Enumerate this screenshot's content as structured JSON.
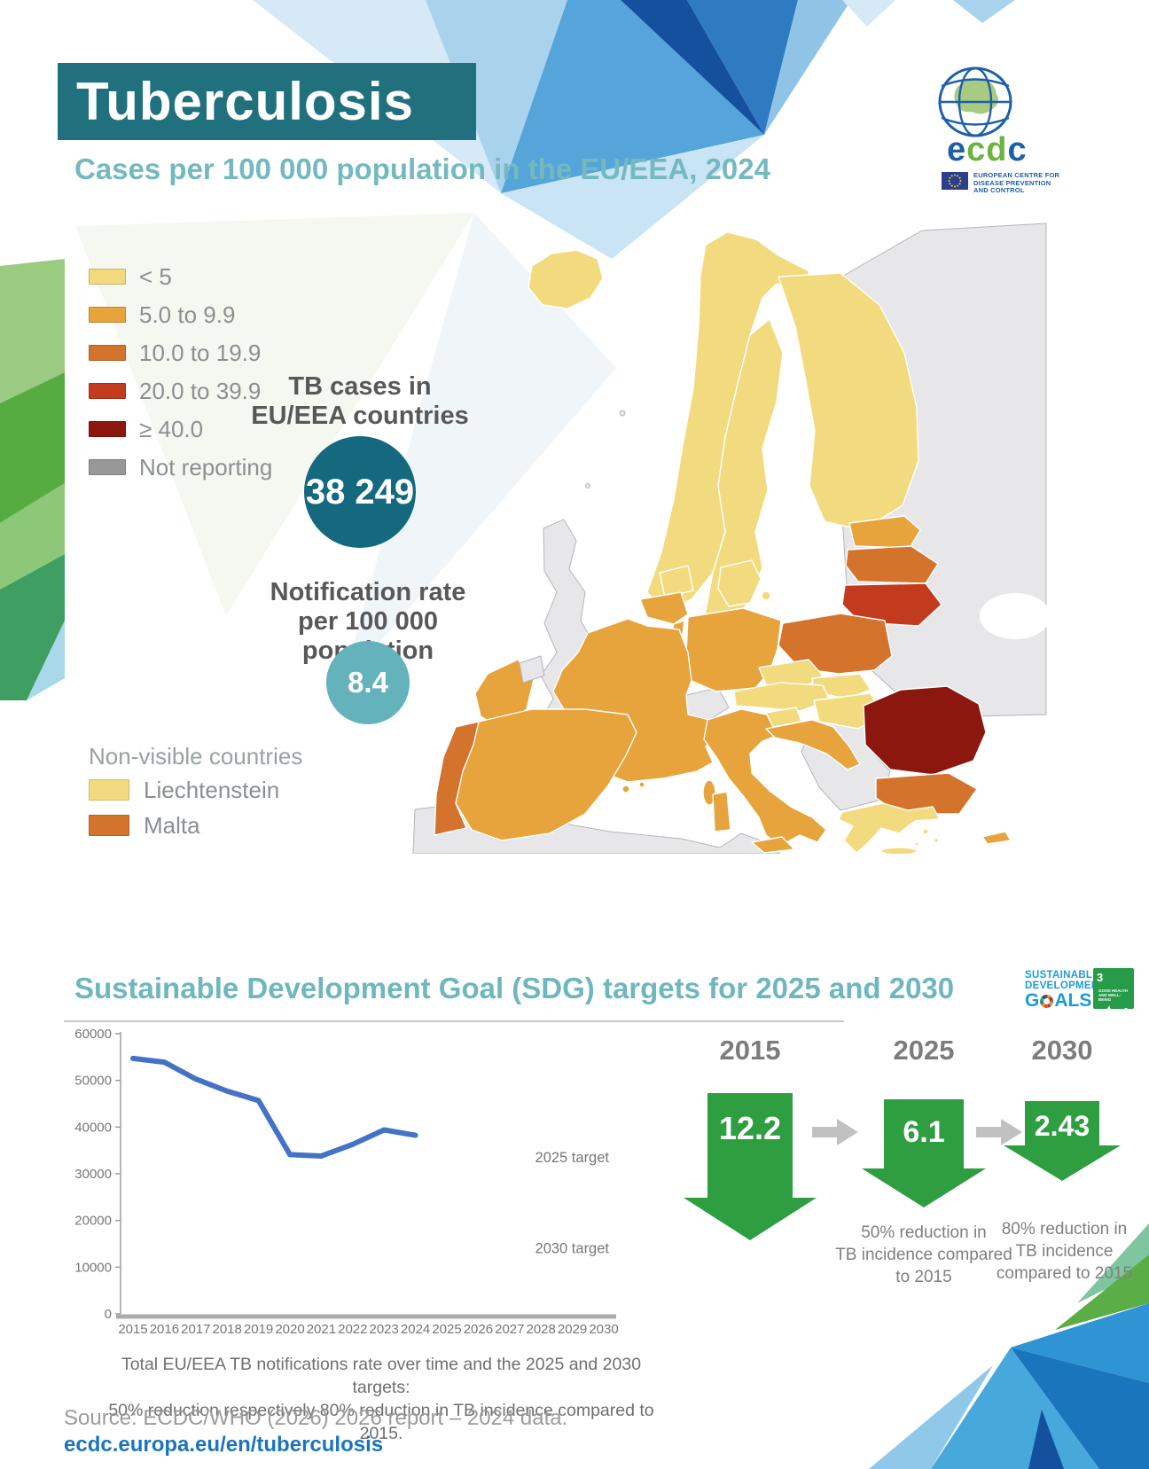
{
  "header": {
    "title": "Tuberculosis",
    "subtitle": "Cases per 100 000 population in the EU/EEA, 2024",
    "banner_color": "#20707E",
    "subtitle_color": "#74B9C0"
  },
  "ecdc": {
    "wordmark_e": "e",
    "wordmark_c1": "c",
    "wordmark_d": "d",
    "wordmark_c2": "c",
    "blue": "#1E5FA9",
    "green": "#6CB33F",
    "org": [
      "EUROPEAN CENTRE FOR",
      "DISEASE PREVENTION",
      "AND CONTROL"
    ]
  },
  "map_legend": {
    "items": [
      {
        "label": "< 5",
        "color": "#F2DB7E"
      },
      {
        "label": "5.0 to 9.9",
        "color": "#E7A33C"
      },
      {
        "label": "10.0 to 19.9",
        "color": "#D4732B"
      },
      {
        "label": "20.0 to 39.9",
        "color": "#C23B1E"
      },
      {
        "label": "≥ 40.0",
        "color": "#8B170F"
      },
      {
        "label": "Not reporting",
        "color": "#989898"
      }
    ]
  },
  "stats": {
    "cases_title_line1": "TB cases in",
    "cases_title_line2": "EU/EEA countries",
    "cases_value": "38 249",
    "cases_circle_color": "#15697F",
    "rate_title_line1": "Notification rate",
    "rate_title_line2": "per 100 000 population",
    "rate_value": "8.4",
    "rate_circle_color": "#63B2BC"
  },
  "non_visible": {
    "heading": "Non-visible countries",
    "items": [
      {
        "label": "Liechtenstein",
        "color": "#F2DB7E"
      },
      {
        "label": "Malta",
        "color": "#D4732B"
      }
    ]
  },
  "map": {
    "categories": {
      "lt5": "#F2DB7E",
      "c5to9": "#E7A33C",
      "c10to19": "#D4732B",
      "c20to39": "#C23B1E",
      "gte40": "#8B170F",
      "gray": "#E7E7EA"
    },
    "countries": {
      "iceland": "lt5",
      "norway": "lt5",
      "sweden": "lt5",
      "finland": "lt5",
      "denmark": "lt5",
      "estonia": "c5to9",
      "latvia": "c10to19",
      "lithuania": "c20to39",
      "poland": "c10to19",
      "germany": "c5to9",
      "netherlands": "lt5",
      "belgium": "c5to9",
      "luxembourg": "c5to9",
      "ireland": "c5to9",
      "france": "c5to9",
      "spain": "c5to9",
      "portugal": "c10to19",
      "italy": "c5to9",
      "austria": "lt5",
      "czechia": "lt5",
      "slovakia": "lt5",
      "hungary": "lt5",
      "slovenia": "lt5",
      "croatia": "c5to9",
      "romania": "gte40",
      "bulgaria": "c10to19",
      "greece": "lt5",
      "cyprus": "c5to9",
      "corsica": "c5to9",
      "sardinia": "c5to9",
      "sicily": "c5to9",
      "crete": "lt5",
      "balearics": "c5to9",
      "aegean": "lt5"
    }
  },
  "sdg": {
    "title": "Sustainable Development Goal (SDG) targets for 2025 and 2030",
    "title_color": "#6FB7BE",
    "logo_line1": "SUSTAINABLE",
    "logo_line2": "DEVELOPMENT",
    "logo_goals_g": "G",
    "logo_goals_als": "ALS",
    "logo_text_color": "#1B9CD6",
    "sdg3_number": "3",
    "sdg3_name_line1": "GOOD HEALTH",
    "sdg3_name_line2": "AND WELL-BEING",
    "sdg3_color": "#279B48"
  },
  "targets": {
    "arrow_color": "#2E9E41",
    "items": [
      {
        "year": "2015",
        "value": "12.2",
        "note_line1": "",
        "note_line2": "",
        "note_line3": ""
      },
      {
        "year": "2025",
        "value": "6.1",
        "note_line1": "50% reduction in",
        "note_line2": "TB incidence compared",
        "note_line3": "to 2015"
      },
      {
        "year": "2030",
        "value": "2.43",
        "note_line1": "80% reduction in",
        "note_line2": "TB incidence",
        "note_line3": "compared to 2015"
      }
    ]
  },
  "chart_data": {
    "type": "line",
    "title": "",
    "xlabel": "",
    "ylabel": "",
    "series_name": "Total EU/EEA TB notifications",
    "x": [
      2015,
      2016,
      2017,
      2018,
      2019,
      2020,
      2021,
      2022,
      2023,
      2024
    ],
    "values": [
      54700,
      53900,
      50300,
      47700,
      45700,
      34100,
      33800,
      36300,
      39400,
      38249
    ],
    "x_range": [
      2015,
      2030
    ],
    "x_tick_labels": [
      "2015",
      "2016",
      "2017",
      "2018",
      "2019",
      "2020",
      "2021",
      "2022",
      "2023",
      "2024",
      "2025",
      "2026",
      "2027",
      "2028",
      "2029",
      "2030"
    ],
    "ylim": [
      0,
      60000
    ],
    "y_ticks": [
      0,
      10000,
      20000,
      30000,
      40000,
      50000,
      60000
    ],
    "line_color": "#4472C4",
    "grid": false,
    "legend_position": "none",
    "annotations": [
      {
        "text": "2025 target",
        "y": 33400
      },
      {
        "text": "2030 target",
        "y": 14000
      }
    ]
  },
  "chart_caption": {
    "line1": "Total EU/EEA TB notifications rate over time and the 2025 and 2030 targets:",
    "line2": "50% reduction respectively 80% reduction in TB incidence compared to 2015."
  },
  "footer": {
    "source": "Source: ECDC/WHO (2026) 2026 report – 2024 data.",
    "link": "ecdc.europa.eu/en/tuberculosis",
    "link_color": "#1B75BC"
  }
}
